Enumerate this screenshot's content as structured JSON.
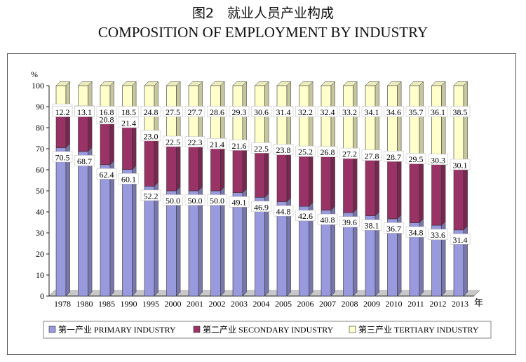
{
  "title_cn": "图2　就业人员产业构成",
  "title_en": "COMPOSITION OF EMPLOYMENT BY INDUSTRY",
  "chart_data": {
    "type": "bar",
    "stacked": true,
    "percent_stacked": true,
    "ylabel": "%",
    "xlabel": "年",
    "ylim": [
      0,
      100
    ],
    "yticks": [
      0,
      10,
      20,
      30,
      40,
      50,
      60,
      70,
      80,
      90,
      100
    ],
    "grid": false,
    "legend_position": "bottom",
    "categories": [
      "1978",
      "1980",
      "1985",
      "1990",
      "1995",
      "2000",
      "2001",
      "2002",
      "2003",
      "2004",
      "2005",
      "2006",
      "2007",
      "2008",
      "2009",
      "2010",
      "2011",
      "2012",
      "2013"
    ],
    "series": [
      {
        "name": "第一产业 PRIMARY INDUSTRY",
        "color": "#9999dd",
        "values": [
          70.5,
          68.7,
          62.4,
          60.1,
          52.2,
          50.0,
          50.0,
          50.0,
          49.1,
          46.9,
          44.8,
          42.6,
          40.8,
          39.6,
          38.1,
          36.7,
          34.8,
          33.6,
          31.4
        ]
      },
      {
        "name": "第二产业 SECONDARY INDUSTRY",
        "color": "#993366",
        "values": [
          17.3,
          18.2,
          20.8,
          21.4,
          23.0,
          22.5,
          22.3,
          21.4,
          21.6,
          22.5,
          23.8,
          25.2,
          26.8,
          27.2,
          27.8,
          28.7,
          29.5,
          30.3,
          30.1
        ]
      },
      {
        "name": "第三产业 TERTIARY INDUSTRY",
        "color": "#ffffcc",
        "values": [
          12.2,
          13.1,
          16.8,
          18.5,
          24.8,
          27.5,
          27.7,
          28.6,
          29.3,
          30.6,
          31.4,
          32.2,
          32.4,
          33.2,
          34.1,
          34.6,
          35.7,
          36.1,
          38.5
        ]
      }
    ]
  }
}
